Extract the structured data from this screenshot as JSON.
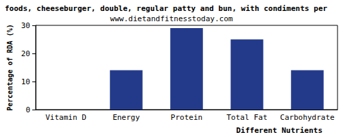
{
  "chart_data": {
    "type": "bar",
    "title": "foods, cheeseburger, double, regular patty and bun, with condiments per",
    "subtitle": "www.dietandfitnesstoday.com",
    "x_label": "Different Nutrients",
    "y_label": "Percentage of RDA (%)",
    "categories": [
      "Vitamin D",
      "Energy",
      "Protein",
      "Total Fat",
      "Carbohydrate"
    ],
    "values": [
      0,
      14,
      29,
      25,
      14
    ],
    "color": "#233a8b",
    "ylim": [
      0,
      30
    ],
    "yticks": [
      0,
      10,
      20,
      30
    ],
    "grid": false
  }
}
